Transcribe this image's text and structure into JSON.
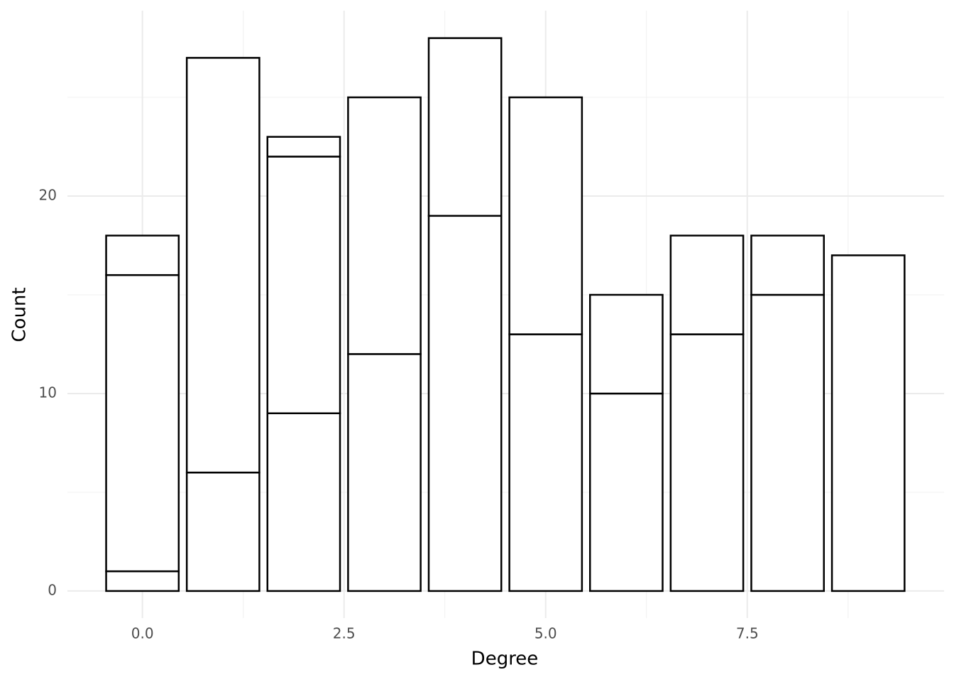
{
  "chart_data": {
    "type": "stacked_bar",
    "x_label": "Degree",
    "y_label": "Count",
    "x": [
      0,
      1,
      2,
      3,
      4,
      5,
      6,
      7,
      8,
      9
    ],
    "series": [
      {
        "color": "#ffffff",
        "values": [
          1,
          6,
          9,
          12,
          19,
          13,
          10,
          13,
          15,
          17
        ]
      },
      {
        "color": "#ffffff",
        "values": [
          15,
          21,
          13,
          13,
          9,
          12,
          5,
          5,
          3,
          null
        ]
      },
      {
        "color": "#ffffff",
        "values": [
          2,
          null,
          1,
          null,
          null,
          null,
          null,
          null,
          null,
          null
        ]
      }
    ],
    "outline_color": "#000000",
    "xlim": [
      -0.93,
      9.94
    ],
    "xticks": [
      {
        "value": 0,
        "label": "0.0"
      },
      {
        "value": 2.5,
        "label": "2.5"
      },
      {
        "value": 5,
        "label": "5.0"
      },
      {
        "value": 7.5,
        "label": "7.5"
      }
    ],
    "xminorticks": [
      1.25,
      3.75,
      6.25,
      8.75
    ],
    "ylim": [
      -1.37,
      29.39
    ],
    "yticks": [
      0,
      10,
      20
    ],
    "yminorticks": [
      5,
      15,
      25
    ],
    "grid": true
  }
}
